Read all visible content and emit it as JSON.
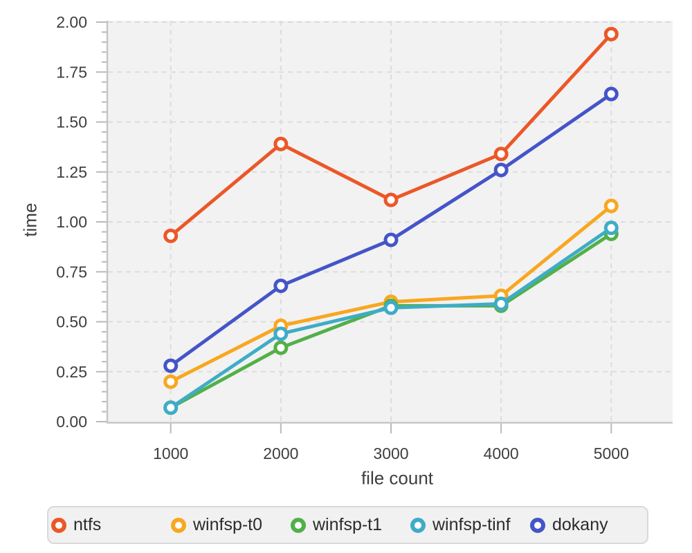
{
  "chart_data": {
    "type": "line",
    "title": "",
    "xlabel": "file count",
    "ylabel": "time",
    "x": [
      1000,
      2000,
      3000,
      4000,
      5000
    ],
    "x_tick_labels": [
      "1000",
      "2000",
      "3000",
      "4000",
      "5000"
    ],
    "ylim": [
      0.0,
      2.0
    ],
    "y_tick_values": [
      0.0,
      0.25,
      0.5,
      0.75,
      1.0,
      1.25,
      1.5,
      1.75,
      2.0
    ],
    "y_tick_labels": [
      "0.00",
      "0.25",
      "0.50",
      "0.75",
      "1.00",
      "1.25",
      "1.50",
      "1.75",
      "2.00"
    ],
    "y_minor_tick_step": 0.05,
    "grid": "dashed",
    "legend_position": "bottom",
    "colors": {
      "plot_background": "#f2f2f2",
      "grid_line": "#dcdcdc",
      "axis_line": "#c6c6c6",
      "tick_mark": "#b9b9b9",
      "tick_label_text": "#3e3e3e",
      "legend_background": "#f1f1f1",
      "legend_border": "#d9d9d9",
      "marker_fill": "#ffffff"
    },
    "series": [
      {
        "name": "ntfs",
        "color": "#ec5728",
        "values": [
          0.93,
          1.39,
          1.11,
          1.34,
          1.94
        ]
      },
      {
        "name": "winfsp-t0",
        "color": "#f8a71f",
        "values": [
          0.2,
          0.48,
          0.6,
          0.63,
          1.08
        ]
      },
      {
        "name": "winfsp-t1",
        "color": "#52b04a",
        "values": [
          0.07,
          0.37,
          0.58,
          0.58,
          0.94
        ]
      },
      {
        "name": "winfsp-tinf",
        "color": "#3facc6",
        "values": [
          0.07,
          0.44,
          0.57,
          0.59,
          0.97
        ]
      },
      {
        "name": "dokany",
        "color": "#4554c8",
        "values": [
          0.28,
          0.68,
          0.91,
          1.26,
          1.64
        ]
      }
    ]
  }
}
